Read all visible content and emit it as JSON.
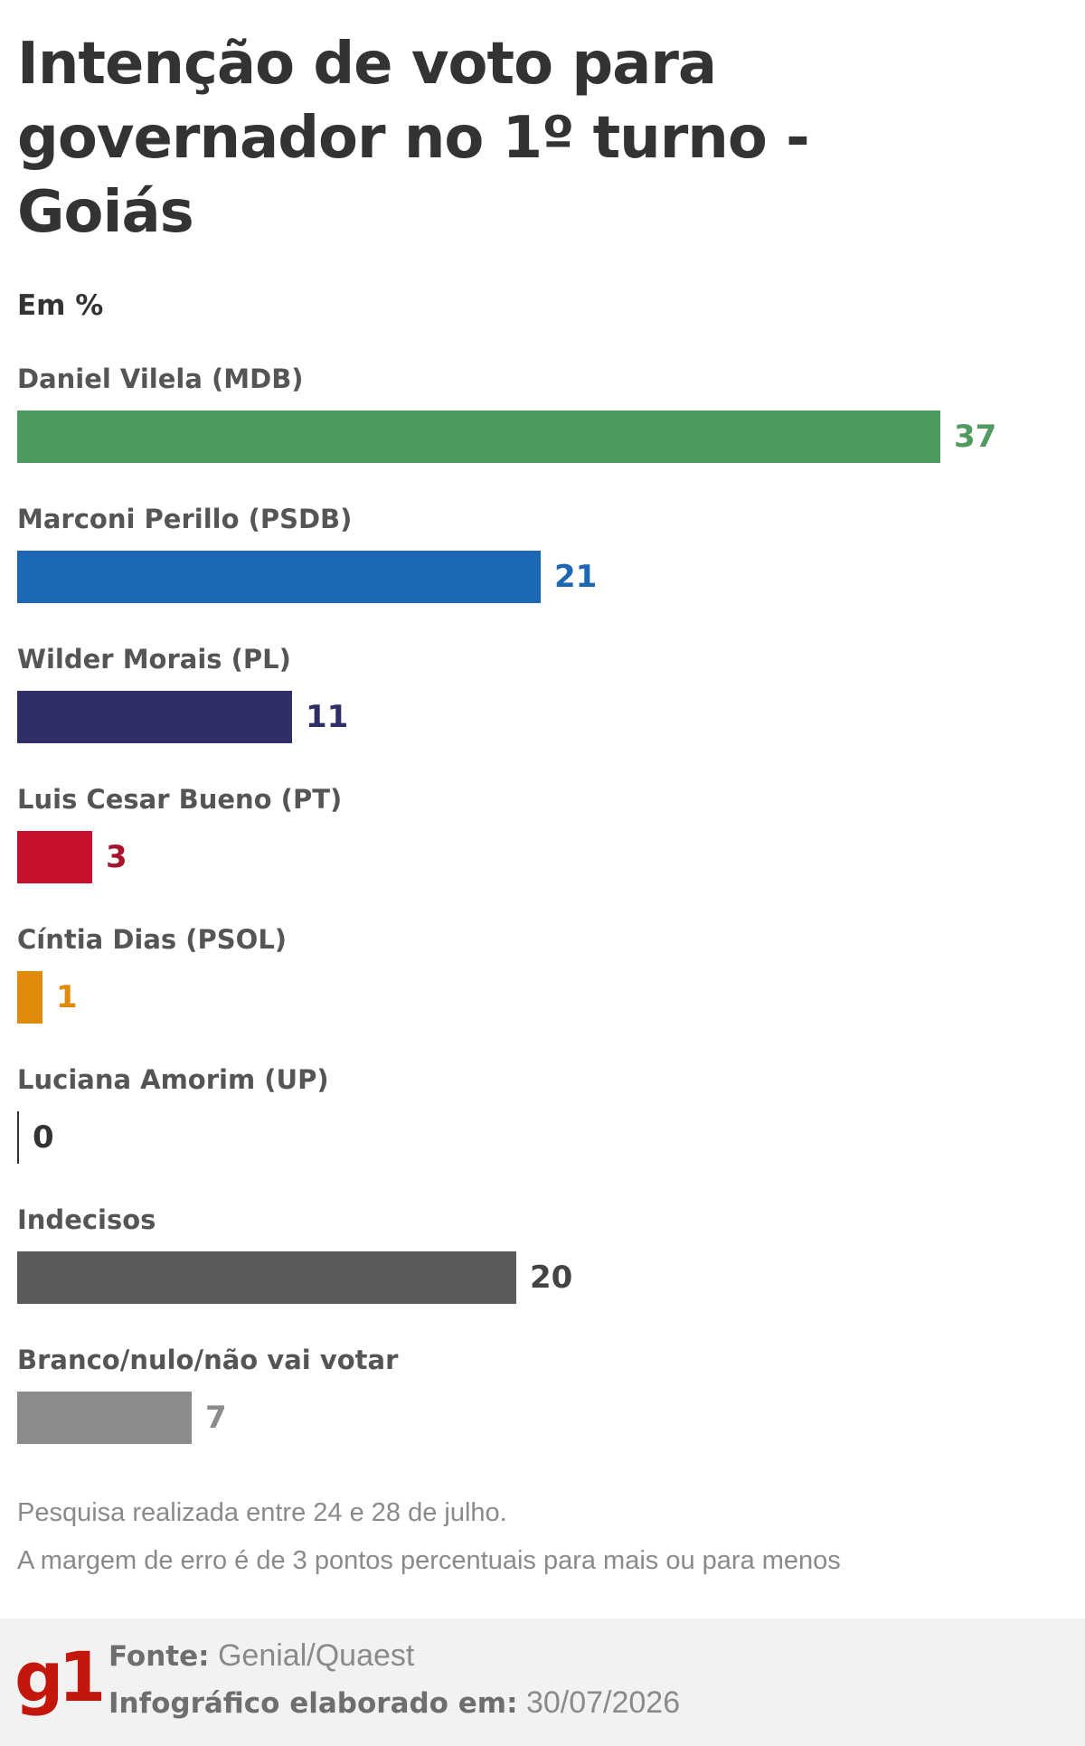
{
  "chart_data": {
    "type": "bar",
    "orientation": "horizontal",
    "title": "Intenção de voto para governador no 1º turno - Goiás",
    "unit_label": "Em %",
    "categories": [
      "Daniel Vilela (MDB)",
      "Marconi Perillo (PSDB)",
      "Wilder Morais (PL)",
      "Luis Cesar Bueno (PT)",
      "Cíntia Dias (PSOL)",
      "Luciana Amorim (UP)",
      "Indecisos",
      "Branco/nulo/não vai votar"
    ],
    "values": [
      37,
      21,
      11,
      3,
      1,
      0,
      20,
      7
    ],
    "colors": [
      "#4f9a5f",
      "#1d68b2",
      "#302e66",
      "#c8102e",
      "#e08a0b",
      "#333333",
      "#5a5a5a",
      "#8b8b8b"
    ],
    "label_colors": [
      "#4f9a5f",
      "#1d68b2",
      "#302e66",
      "#a8122d",
      "#e08a0b",
      "#333333",
      "#444444",
      "#8b8b8b"
    ],
    "xlim": [
      0,
      37
    ],
    "grid": false,
    "legend": "none"
  },
  "notes": [
    "Pesquisa realizada entre 24 e 28 de julho.",
    "A margem de erro é de 3 pontos percentuais para mais ou para menos"
  ],
  "footer": {
    "logo": "g1",
    "source_label": "Fonte:",
    "source_value": "Genial/Quaest",
    "date_label": "Infográfico elaborado em:",
    "date_value": "30/07/2026"
  }
}
